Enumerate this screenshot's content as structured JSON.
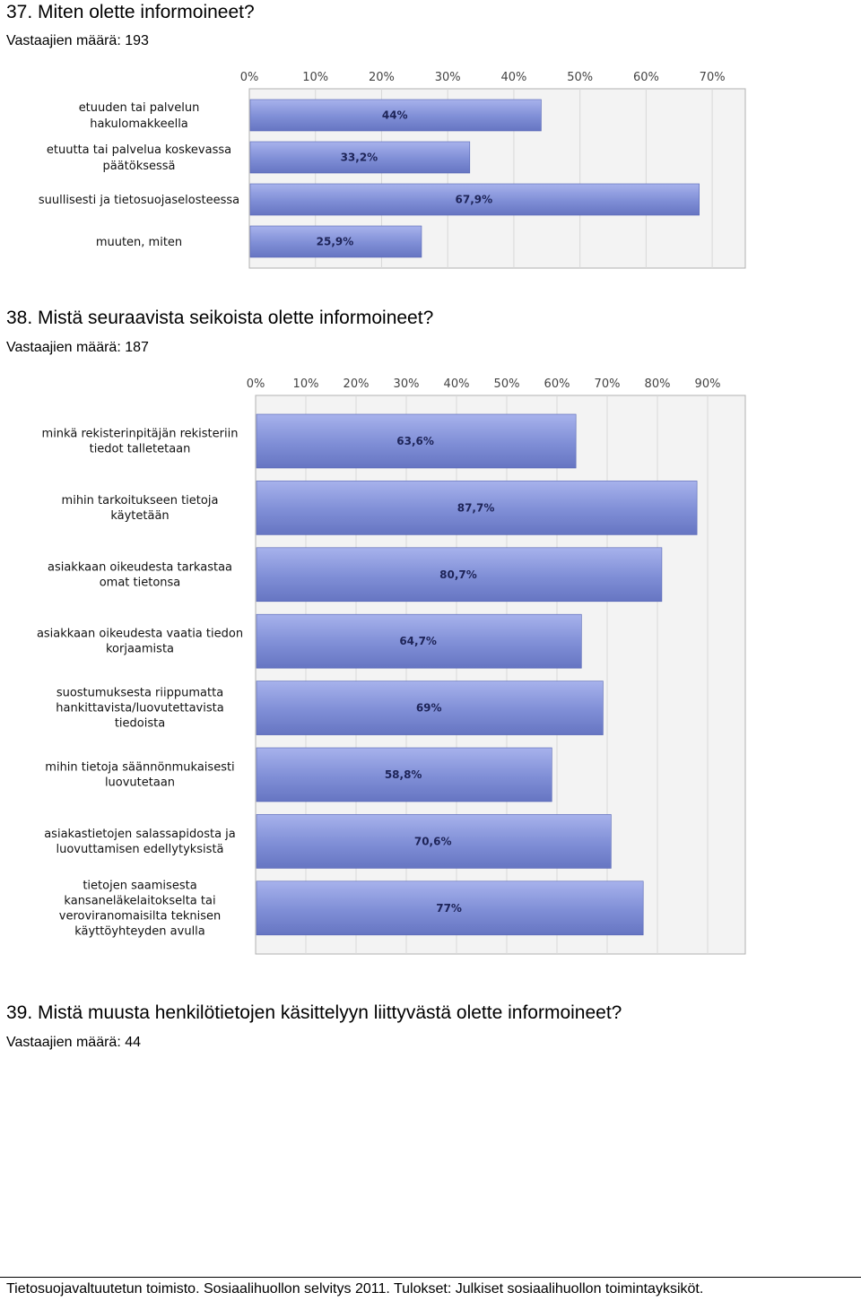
{
  "q37": {
    "title": "37. Miten olette informoineet?",
    "respondents": "Vastaajien määrä: 193"
  },
  "q38": {
    "title": "38. Mistä seuraavista seikoista olette informoineet?",
    "respondents": "Vastaajien määrä: 187"
  },
  "q39": {
    "title": "39. Mistä muusta henkilötietojen käsittelyyn liittyvästä olette informoineet?",
    "respondents": "Vastaajien määrä: 44"
  },
  "footer": "Tietosuojavaltuutetun toimisto. Sosiaalihuollon selvitys 2011. Tulokset: Julkiset sosiaalihuollon toimintayksiköt.",
  "colors": {
    "bar": "#7f8ed6",
    "bar_light": "#a7b2ec",
    "bar_dark": "#6675c2",
    "plot_bg": "#f3f3f3",
    "grid": "#d8d8d8"
  },
  "chart_data": [
    {
      "type": "bar",
      "orientation": "horizontal",
      "categories": [
        [
          "etuuden tai palvelun",
          "hakulomakkeella"
        ],
        [
          "etuutta tai palvelua koskevassa",
          "päätöksessä"
        ],
        [
          "suullisesti ja tietosuojaselosteessa"
        ],
        [
          "muuten, miten"
        ]
      ],
      "values": [
        44,
        33.2,
        67.9,
        25.9
      ],
      "value_labels": [
        "44%",
        "33,2%",
        "67,9%",
        "25,9%"
      ],
      "ticks": [
        "0%",
        "10%",
        "20%",
        "30%",
        "40%",
        "50%",
        "60%",
        "70%"
      ],
      "xlim": [
        0,
        75
      ],
      "grid": true
    },
    {
      "type": "bar",
      "orientation": "horizontal",
      "categories": [
        [
          "minkä rekisterinpitäjän rekisteriin",
          "tiedot talletetaan"
        ],
        [
          "mihin tarkoitukseen tietoja",
          "käytetään"
        ],
        [
          "asiakkaan oikeudesta tarkastaa",
          "omat tietonsa"
        ],
        [
          "asiakkaan oikeudesta vaatia tiedon",
          "korjaamista"
        ],
        [
          "suostumuksesta riippumatta",
          "hankittavista/luovutettavista",
          "tiedoista"
        ],
        [
          "mihin tietoja säännönmukaisesti",
          "luovutetaan"
        ],
        [
          "asiakastietojen salassapidosta ja",
          "luovuttamisen edellytyksistä"
        ],
        [
          "tietojen saamisesta",
          "kansaneläkelaitokselta tai",
          "veroviranomaisilta teknisen",
          "käyttöyhteyden avulla"
        ]
      ],
      "values": [
        63.6,
        87.7,
        80.7,
        64.7,
        69,
        58.8,
        70.6,
        77
      ],
      "value_labels": [
        "63,6%",
        "87,7%",
        "80,7%",
        "64,7%",
        "69%",
        "58,8%",
        "70,6%",
        "77%"
      ],
      "ticks": [
        "0%",
        "10%",
        "20%",
        "30%",
        "40%",
        "50%",
        "60%",
        "70%",
        "80%",
        "90%"
      ],
      "xlim": [
        0,
        97.5
      ],
      "grid": true
    }
  ]
}
